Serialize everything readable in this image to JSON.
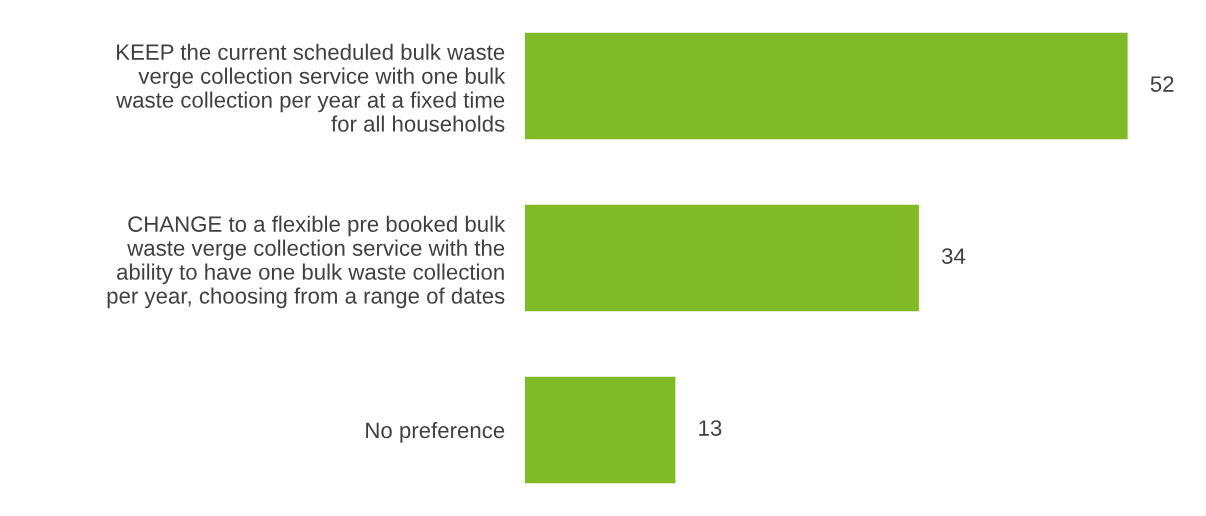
{
  "chart_data": {
    "type": "bar",
    "orientation": "horizontal",
    "categories": [
      "KEEP the current scheduled bulk waste\nverge collection service with one bulk\nwaste collection per year at a fixed time\nfor all households",
      "CHANGE to a flexible pre booked bulk\nwaste verge collection service with the\nability to have one bulk waste collection\nper year, choosing from a range of dates",
      "No preference"
    ],
    "values": [
      52,
      34,
      13
    ],
    "color": "#80bb27",
    "data_labels": true,
    "grid": false,
    "legend": false
  }
}
